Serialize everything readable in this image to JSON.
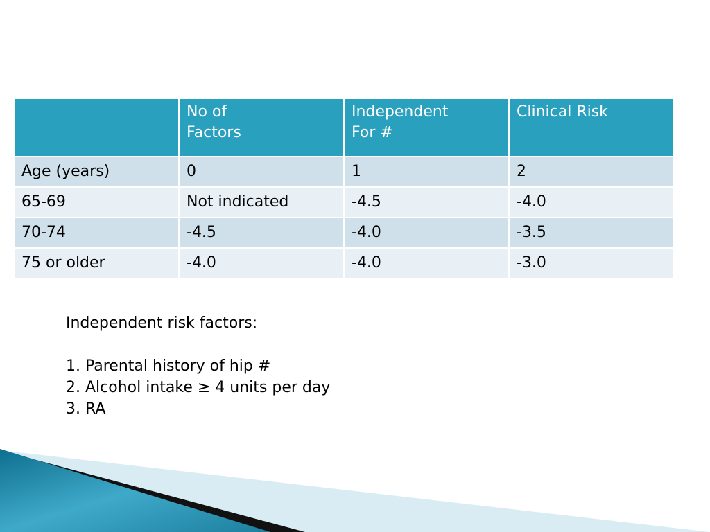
{
  "table": {
    "headers": [
      "",
      "No of\nFactors",
      "Independent\nFor #",
      "Clinical Risk"
    ],
    "rows": [
      [
        "Age (years)",
        "0",
        "1",
        "2"
      ],
      [
        "65-69",
        "Not indicated",
        "-4.5",
        "-4.0"
      ],
      [
        "70-74",
        "-4.5",
        "-4.0",
        "-3.5"
      ],
      [
        "75 or older",
        "-4.0",
        "-4.0",
        "-3.0"
      ]
    ]
  },
  "notes": {
    "heading": "Independent risk factors:",
    "items": [
      "1. Parental history of hip #",
      "2. Alcohol intake ≥ 4 units per day",
      "3. RA"
    ]
  },
  "colors": {
    "header_bg": "#2aa0bf",
    "row_dark": "#cfe0ea",
    "row_light": "#e8eff5",
    "accent_teal": "#1d7fa0"
  }
}
